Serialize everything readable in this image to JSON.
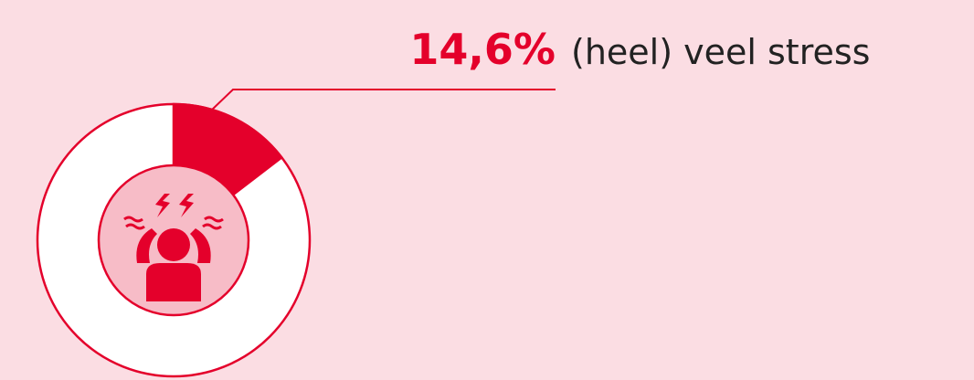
{
  "chart_data": {
    "type": "pie",
    "categories": [
      "(heel) veel stress"
    ],
    "values": [
      14.6
    ],
    "value_labels": [
      "14,6%"
    ],
    "color": "#e4002b"
  }
}
